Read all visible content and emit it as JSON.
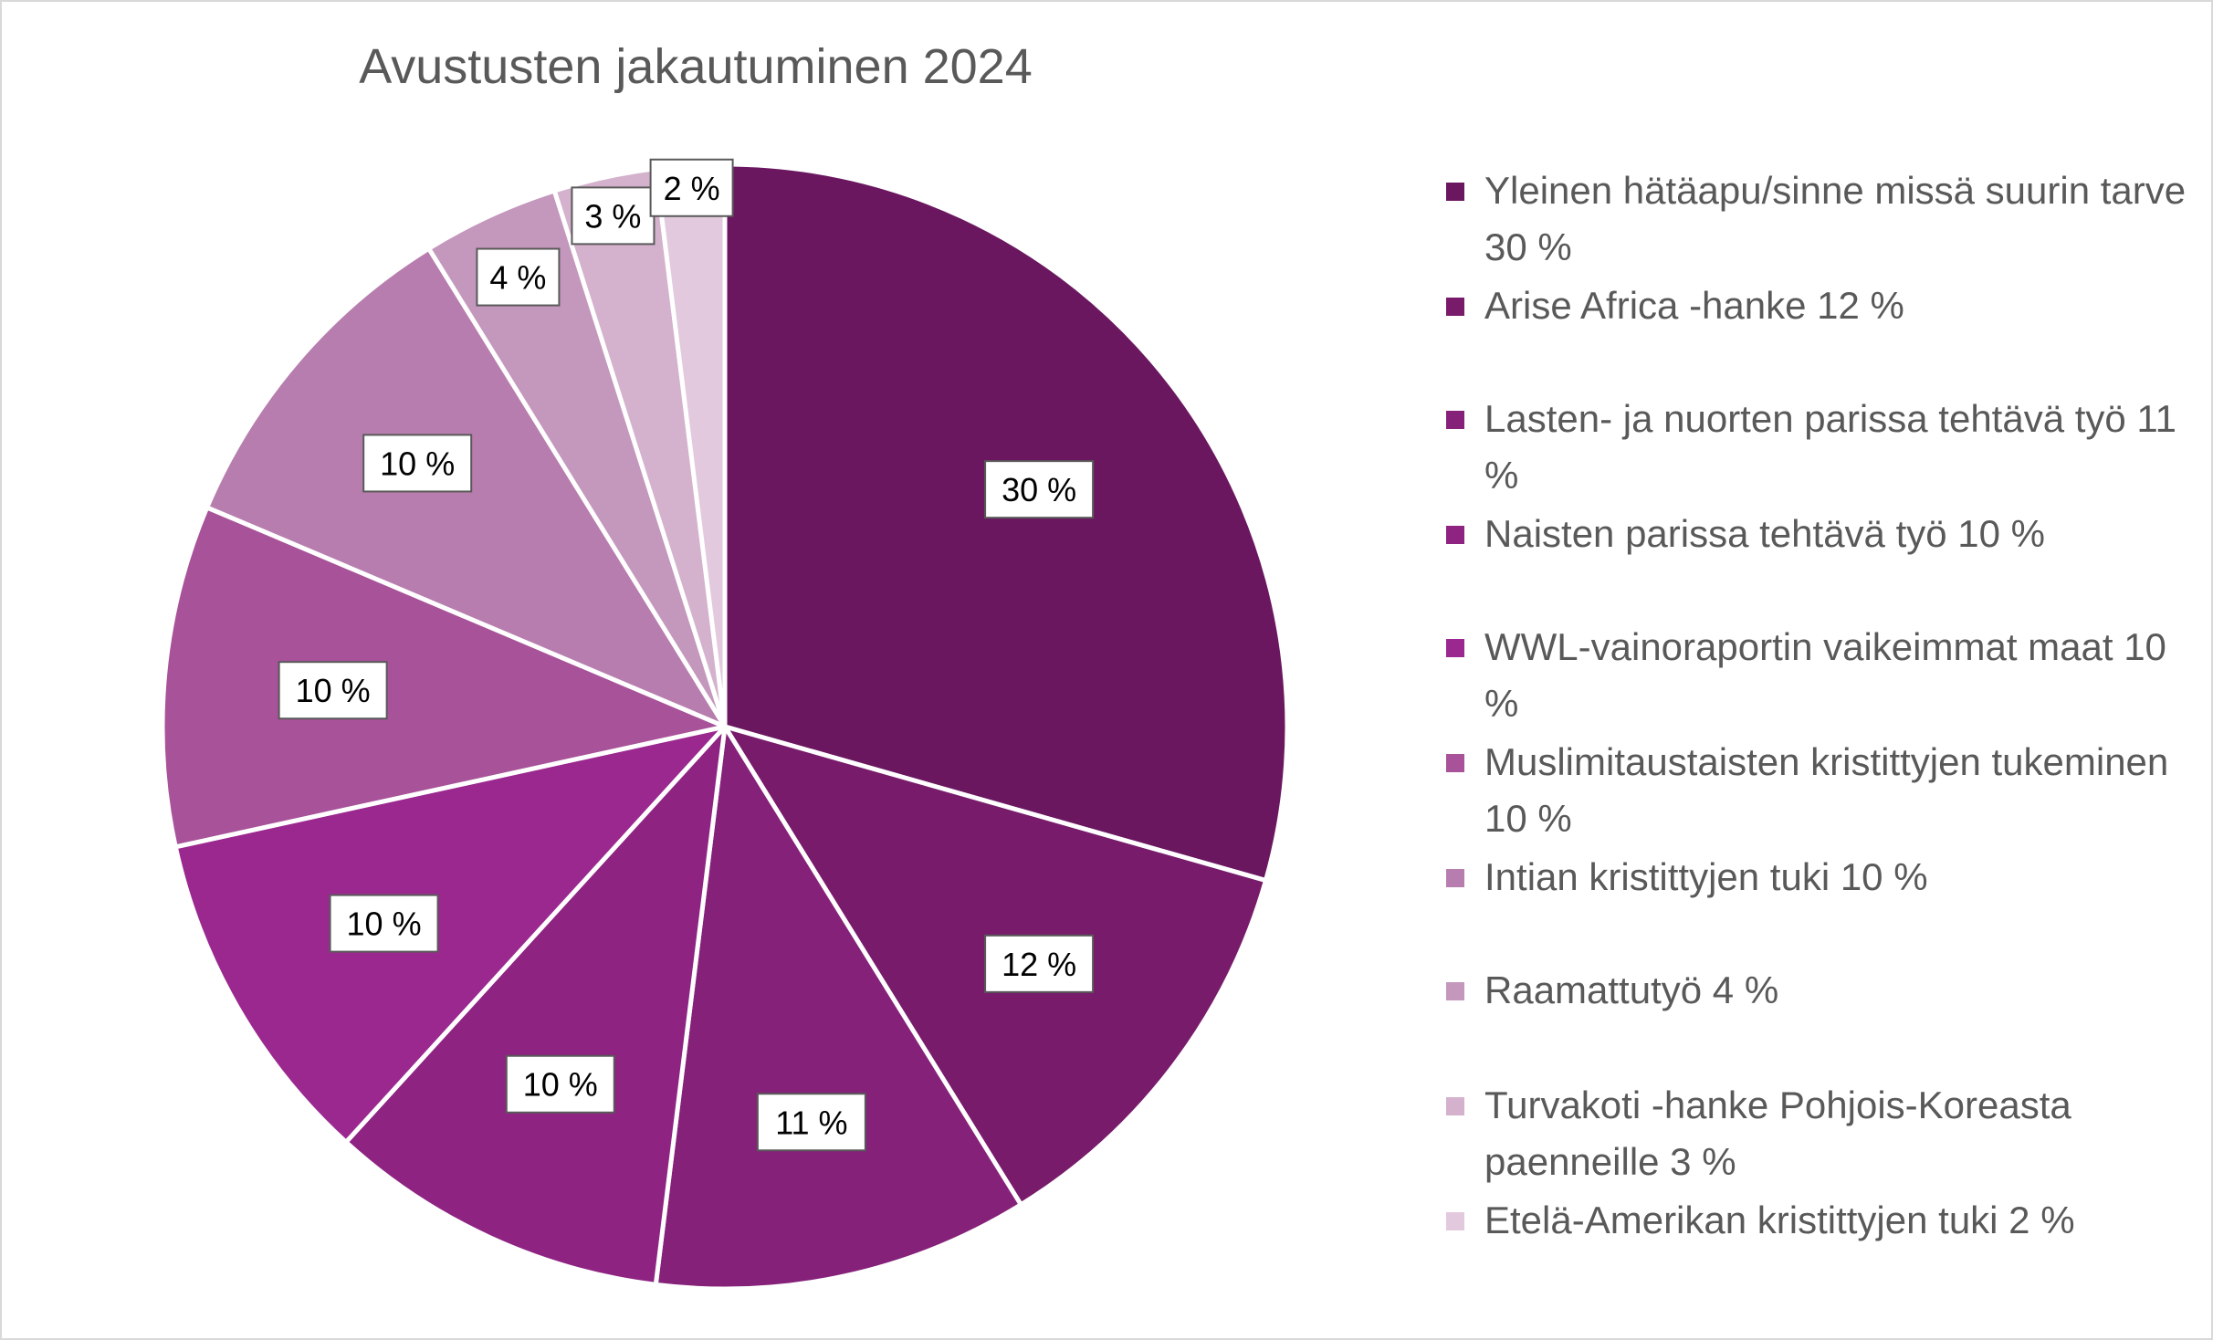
{
  "chart_data": {
    "type": "pie",
    "title": "Avustusten jakautuminen 2024",
    "legend_position": "right",
    "slices": [
      {
        "name": "Yleinen hätäapu/sinne missä suurin tarve 30 %",
        "value": 30,
        "label": "30 %",
        "color": "#6a1760"
      },
      {
        "name": "Arise Africa -hanke 12 %",
        "value": 12,
        "label": "12 %",
        "color": "#781b6b"
      },
      {
        "name": "Lasten- ja nuorten parissa tehtävä työ 11 %",
        "value": 11,
        "label": "11 %",
        "color": "#852179"
      },
      {
        "name": "Naisten parissa tehtävä työ 10 %",
        "value": 10,
        "label": "10 %",
        "color": "#8e2382"
      },
      {
        "name": "WWL-vainoraportin vaikeimmat maat 10 %",
        "value": 10,
        "label": "10 %",
        "color": "#9b288f"
      },
      {
        "name": "Muslimitaustaisten kristittyjen tukeminen 10 %",
        "value": 10,
        "label": "10 %",
        "color": "#a85299"
      },
      {
        "name": "Intian kristittyjen tuki 10 %",
        "value": 10,
        "label": "10 %",
        "color": "#b77dae"
      },
      {
        "name": "Raamattutyö 4 %",
        "value": 4,
        "label": "4 %",
        "color": "#c497bd"
      },
      {
        "name": "Turvakoti -hanke Pohjois-Koreasta paenneille 3 %",
        "value": 3,
        "label": "3 %",
        "color": "#d4b1cd"
      },
      {
        "name": "Etelä-Amerikan kristittyjen tuki 2 %",
        "value": 2,
        "label": "2 %",
        "color": "#e2c9dd"
      }
    ]
  }
}
